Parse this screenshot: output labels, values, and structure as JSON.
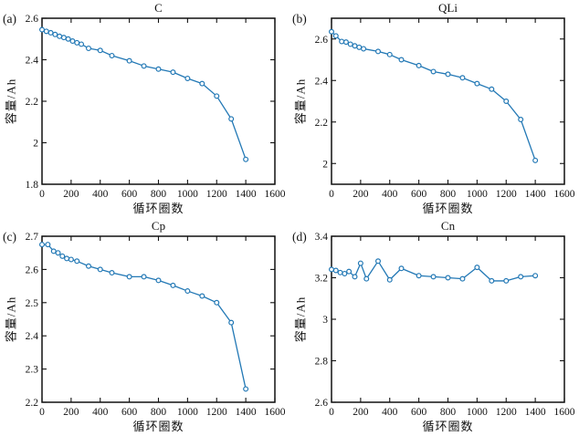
{
  "figure": {
    "corner_labels": [
      "(a)",
      "(b)",
      "(c)",
      "(d)"
    ],
    "colors": {
      "line": "#2278b5",
      "marker_fill": "#ffffff",
      "axis": "#111111",
      "background": "#ffffff"
    }
  },
  "chart_data": [
    {
      "id": "a",
      "type": "line",
      "corner_label": "(a)",
      "title": "C",
      "xlabel": "循环圈数",
      "ylabel": "容量/Ah",
      "xlim": [
        0,
        1600
      ],
      "ylim": [
        1.8,
        2.6
      ],
      "xticks": [
        0,
        200,
        400,
        600,
        800,
        1000,
        1200,
        1400,
        1600
      ],
      "xtick_labels": [
        "0",
        "200",
        "400",
        "600",
        "800",
        "1000",
        "1200",
        "1400",
        "1600"
      ],
      "yticks": [
        1.8,
        2.0,
        2.2,
        2.4,
        2.6
      ],
      "ytick_labels": [
        "1.8",
        "2",
        "2.2",
        "2.4",
        "2.6"
      ],
      "grid": false,
      "legend": null,
      "x": [
        0,
        30,
        60,
        90,
        120,
        150,
        180,
        210,
        240,
        270,
        320,
        400,
        480,
        600,
        700,
        800,
        900,
        1000,
        1100,
        1200,
        1300,
        1400
      ],
      "y": [
        2.545,
        2.537,
        2.53,
        2.522,
        2.513,
        2.507,
        2.5,
        2.49,
        2.482,
        2.475,
        2.455,
        2.445,
        2.42,
        2.395,
        2.37,
        2.355,
        2.34,
        2.31,
        2.285,
        2.225,
        2.115,
        1.92
      ]
    },
    {
      "id": "b",
      "type": "line",
      "corner_label": "(b)",
      "title": "QLi",
      "xlabel": "循环圈数",
      "ylabel": "容量/Ah",
      "xlim": [
        0,
        1600
      ],
      "ylim": [
        1.9,
        2.7
      ],
      "xticks": [
        0,
        200,
        400,
        600,
        800,
        1000,
        1200,
        1400,
        1600
      ],
      "xtick_labels": [
        "0",
        "200",
        "400",
        "600",
        "800",
        "1000",
        "1200",
        "1400",
        "1600"
      ],
      "yticks": [
        2.0,
        2.2,
        2.4,
        2.6
      ],
      "ytick_labels": [
        "2",
        "2.2",
        "2.4",
        "2.6"
      ],
      "grid": false,
      "legend": null,
      "x": [
        0,
        30,
        70,
        100,
        130,
        160,
        190,
        220,
        320,
        400,
        480,
        600,
        700,
        800,
        900,
        1000,
        1100,
        1200,
        1300,
        1400
      ],
      "y": [
        2.635,
        2.615,
        2.588,
        2.585,
        2.575,
        2.567,
        2.56,
        2.553,
        2.54,
        2.525,
        2.5,
        2.472,
        2.443,
        2.43,
        2.413,
        2.385,
        2.358,
        2.3,
        2.212,
        2.015
      ]
    },
    {
      "id": "c",
      "type": "line",
      "corner_label": "(c)",
      "title": "Cp",
      "xlabel": "循环圈数",
      "ylabel": "容量/Ah",
      "xlim": [
        0,
        1600
      ],
      "ylim": [
        2.2,
        2.7
      ],
      "xticks": [
        0,
        200,
        400,
        600,
        800,
        1000,
        1200,
        1400,
        1600
      ],
      "xtick_labels": [
        "0",
        "200",
        "400",
        "600",
        "800",
        "1000",
        "1200",
        "1400",
        "1600"
      ],
      "yticks": [
        2.2,
        2.3,
        2.4,
        2.5,
        2.6,
        2.7
      ],
      "ytick_labels": [
        "2.2",
        "2.3",
        "2.4",
        "2.5",
        "2.6",
        "2.7"
      ],
      "grid": false,
      "legend": null,
      "x": [
        0,
        40,
        80,
        110,
        140,
        170,
        200,
        240,
        320,
        400,
        480,
        600,
        700,
        800,
        900,
        1000,
        1100,
        1200,
        1300,
        1400
      ],
      "y": [
        2.675,
        2.675,
        2.655,
        2.65,
        2.64,
        2.633,
        2.63,
        2.625,
        2.61,
        2.6,
        2.59,
        2.578,
        2.578,
        2.567,
        2.552,
        2.535,
        2.52,
        2.5,
        2.44,
        2.24
      ]
    },
    {
      "id": "d",
      "type": "line",
      "corner_label": "(d)",
      "title": "Cn",
      "xlabel": "循环圈数",
      "ylabel": "容量/Ah",
      "xlim": [
        0,
        1600
      ],
      "ylim": [
        2.6,
        3.4
      ],
      "xticks": [
        0,
        200,
        400,
        600,
        800,
        1000,
        1200,
        1400,
        1600
      ],
      "xtick_labels": [
        "0",
        "200",
        "400",
        "600",
        "800",
        "1000",
        "1200",
        "1400",
        "1600"
      ],
      "yticks": [
        2.6,
        2.8,
        3.0,
        3.2,
        3.4
      ],
      "ytick_labels": [
        "2.6",
        "2.8",
        "3",
        "3.2",
        "3.4"
      ],
      "grid": false,
      "legend": null,
      "x": [
        0,
        30,
        60,
        90,
        120,
        160,
        200,
        240,
        320,
        400,
        480,
        600,
        700,
        800,
        900,
        1000,
        1100,
        1200,
        1300,
        1400
      ],
      "y": [
        3.24,
        3.235,
        3.225,
        3.22,
        3.23,
        3.205,
        3.27,
        3.195,
        3.28,
        3.19,
        3.245,
        3.21,
        3.205,
        3.2,
        3.195,
        3.25,
        3.185,
        3.185,
        3.205,
        3.21
      ]
    }
  ]
}
